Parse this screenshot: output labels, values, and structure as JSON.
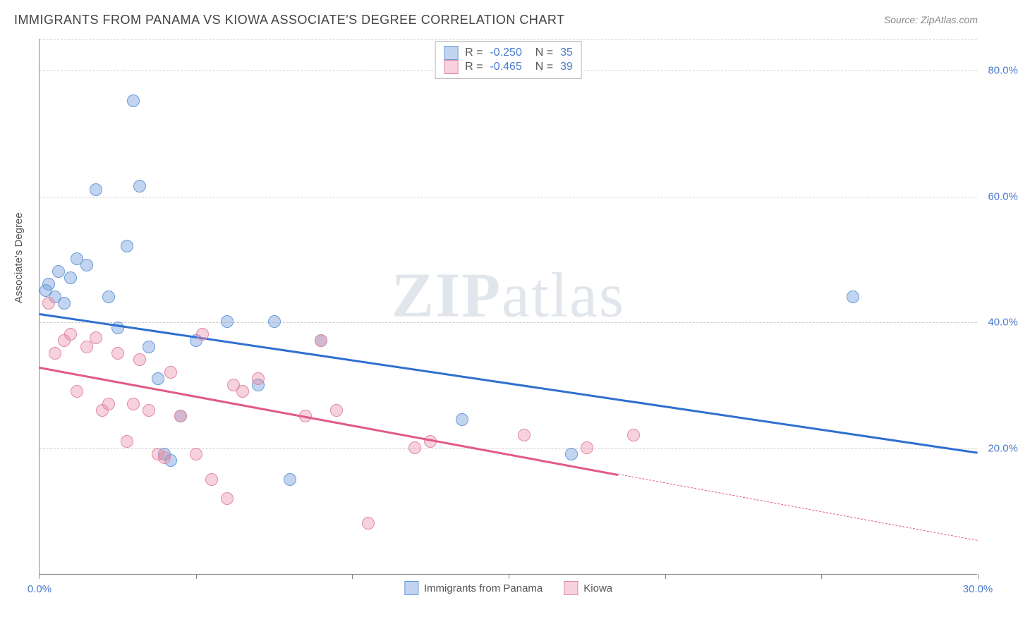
{
  "title": "IMMIGRANTS FROM PANAMA VS KIOWA ASSOCIATE'S DEGREE CORRELATION CHART",
  "source_label": "Source:",
  "source_value": "ZipAtlas.com",
  "watermark_a": "ZIP",
  "watermark_b": "atlas",
  "ylabel": "Associate's Degree",
  "chart": {
    "type": "scatter",
    "background_color": "#ffffff",
    "grid_color": "#cccccc",
    "axis_color": "#888888",
    "xlim": [
      0,
      30
    ],
    "ylim": [
      0,
      85
    ],
    "yticks": [
      20,
      40,
      60,
      80
    ],
    "ytick_labels": [
      "20.0%",
      "40.0%",
      "60.0%",
      "80.0%"
    ],
    "xticks": [
      0,
      5,
      10,
      15,
      20,
      25,
      30
    ],
    "xtick_labels_shown": {
      "0": "0.0%",
      "30": "30.0%"
    },
    "marker_radius": 9,
    "series": [
      {
        "name": "Immigrants from Panama",
        "color_fill": "rgba(120,160,220,0.45)",
        "color_stroke": "#6a9bd8",
        "trend_color": "#2f6fd0",
        "trend_width": 3,
        "R": "-0.250",
        "N": "35",
        "trend_start": [
          0,
          41.5
        ],
        "trend_end": [
          30,
          19.5
        ],
        "trend_dash_from": 30,
        "points": [
          [
            0.2,
            45
          ],
          [
            0.3,
            46
          ],
          [
            0.5,
            44
          ],
          [
            0.6,
            48
          ],
          [
            0.8,
            43
          ],
          [
            1.0,
            47
          ],
          [
            1.2,
            50
          ],
          [
            1.5,
            49
          ],
          [
            1.8,
            61
          ],
          [
            2.2,
            44
          ],
          [
            2.5,
            39
          ],
          [
            2.8,
            52
          ],
          [
            3.0,
            75
          ],
          [
            3.2,
            61.5
          ],
          [
            3.5,
            36
          ],
          [
            3.8,
            31
          ],
          [
            4.0,
            19
          ],
          [
            4.2,
            18
          ],
          [
            4.5,
            25
          ],
          [
            5.0,
            37
          ],
          [
            6.0,
            40
          ],
          [
            7.0,
            30
          ],
          [
            7.5,
            40
          ],
          [
            8.0,
            15
          ],
          [
            9.0,
            37
          ],
          [
            13.5,
            24.5
          ],
          [
            17.0,
            19
          ],
          [
            26.0,
            44
          ]
        ]
      },
      {
        "name": "Kiowa",
        "color_fill": "rgba(235,140,165,0.40)",
        "color_stroke": "#e08aa5",
        "trend_color": "#e05a85",
        "trend_width": 2.5,
        "R": "-0.465",
        "N": "39",
        "trend_start": [
          0,
          33
        ],
        "trend_end": [
          18.5,
          16
        ],
        "trend_dash_to": [
          30,
          5.5
        ],
        "points": [
          [
            0.3,
            43
          ],
          [
            0.5,
            35
          ],
          [
            0.8,
            37
          ],
          [
            1.0,
            38
          ],
          [
            1.2,
            29
          ],
          [
            1.5,
            36
          ],
          [
            1.8,
            37.5
          ],
          [
            2.0,
            26
          ],
          [
            2.2,
            27
          ],
          [
            2.5,
            35
          ],
          [
            2.8,
            21
          ],
          [
            3.0,
            27
          ],
          [
            3.2,
            34
          ],
          [
            3.5,
            26
          ],
          [
            3.8,
            19
          ],
          [
            4.0,
            18.5
          ],
          [
            4.2,
            32
          ],
          [
            4.5,
            25
          ],
          [
            5.0,
            19
          ],
          [
            5.2,
            38
          ],
          [
            5.5,
            15
          ],
          [
            6.0,
            12
          ],
          [
            6.2,
            30
          ],
          [
            6.5,
            29
          ],
          [
            7.0,
            31
          ],
          [
            8.5,
            25
          ],
          [
            9.0,
            37
          ],
          [
            9.5,
            26
          ],
          [
            10.5,
            8
          ],
          [
            12.0,
            20
          ],
          [
            12.5,
            21
          ],
          [
            15.5,
            22
          ],
          [
            17.5,
            20
          ],
          [
            19.0,
            22
          ]
        ]
      }
    ]
  },
  "legend_bottom": [
    {
      "label": "Immigrants from Panama",
      "fill": "rgba(120,160,220,0.45)",
      "stroke": "#6a9bd8"
    },
    {
      "label": "Kiowa",
      "fill": "rgba(235,140,165,0.40)",
      "stroke": "#e08aa5"
    }
  ]
}
